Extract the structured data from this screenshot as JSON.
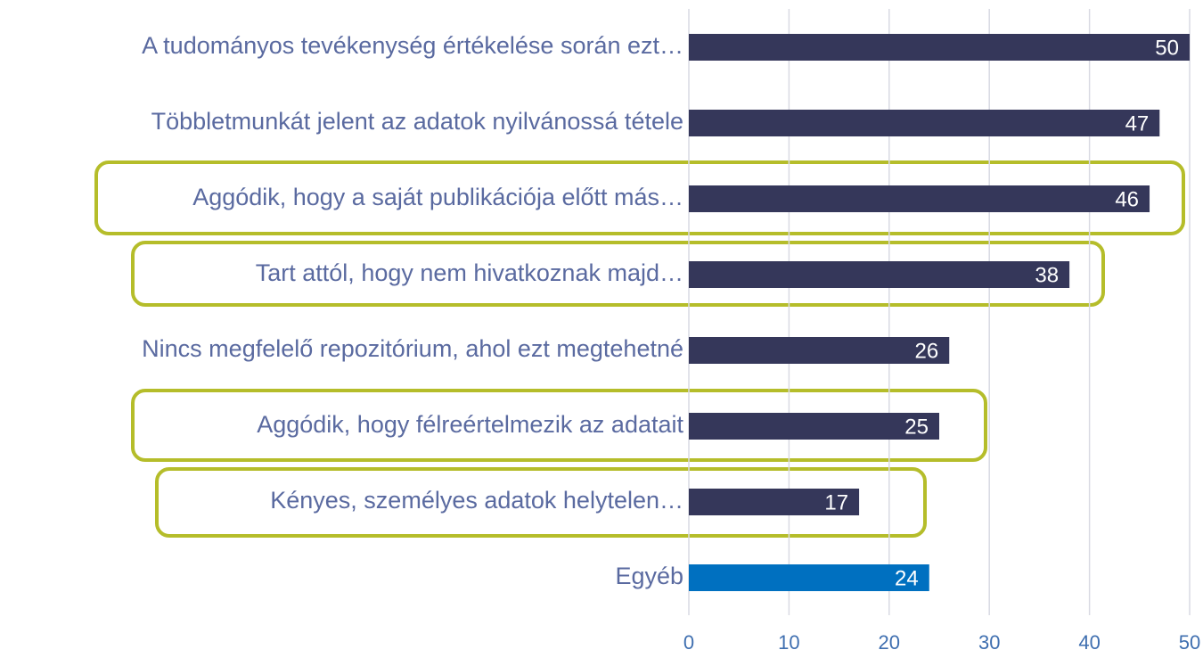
{
  "chart_data": {
    "type": "barh",
    "categories": [
      "A tudományos tevékenység értékelése során ezt…",
      "Többletmunkát jelent az adatok nyilvánossá tétele",
      "Aggódik, hogy a saját publikációja előtt más…",
      "Tart attól, hogy nem hivatkoznak majd…",
      "Nincs megfelelő repozitórium, ahol ezt megtehetné",
      "Aggódik, hogy félreértelmezik az adatait",
      "Kényes, személyes adatok helytelen…",
      "Egyéb"
    ],
    "values": [
      50,
      47,
      46,
      38,
      26,
      25,
      17,
      24
    ],
    "colors": [
      "#35375a",
      "#35375a",
      "#35375a",
      "#35375a",
      "#35375a",
      "#35375a",
      "#35375a",
      "#0070c0"
    ],
    "xlim": [
      0,
      50
    ],
    "xticks": [
      0,
      10,
      20,
      30,
      40,
      50
    ],
    "grid": true
  }
}
